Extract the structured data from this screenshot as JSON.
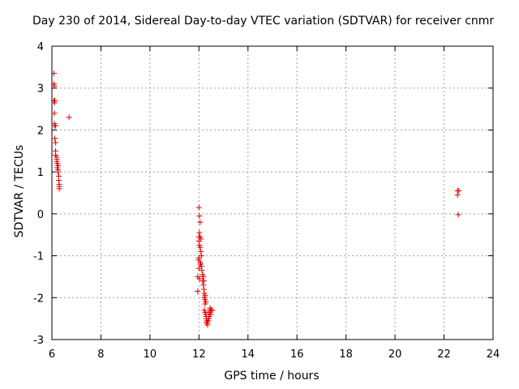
{
  "chart_data": {
    "type": "scatter",
    "title": "Day 230 of 2014, Sidereal Day-to-day VTEC variation (SDTVAR) for receiver cnmr",
    "xlabel": "GPS time / hours",
    "ylabel": "SDTVAR / TECUs",
    "xlim": [
      6,
      24
    ],
    "ylim": [
      -3,
      4
    ],
    "xticks": [
      "6",
      "8",
      "10",
      "12",
      "14",
      "16",
      "18",
      "20",
      "22",
      "24"
    ],
    "yticks": [
      "-3",
      "-2",
      "-1",
      "0",
      "1",
      "2",
      "3",
      "4"
    ],
    "grid": true,
    "marker": "+",
    "color": "#e00000",
    "series": [
      {
        "x": [
          6.08,
          6.08,
          6.1,
          6.08,
          6.1,
          6.12,
          6.1,
          6.1,
          6.15,
          6.1,
          6.12,
          6.15,
          6.15,
          6.15,
          6.2,
          6.2,
          6.2,
          6.22,
          6.22,
          6.25,
          6.25,
          6.25,
          6.28,
          6.28,
          6.3,
          6.3,
          6.3,
          6.7
        ],
        "y": [
          3.35,
          3.1,
          3.05,
          2.7,
          2.65,
          2.7,
          2.4,
          2.15,
          2.1,
          2.1,
          1.8,
          1.7,
          1.5,
          1.4,
          1.35,
          1.3,
          1.25,
          1.2,
          1.1,
          1.15,
          1.05,
          1.0,
          0.9,
          0.8,
          0.7,
          0.65,
          0.6,
          2.3
        ]
      },
      {
        "x": [
          12.0,
          12.02,
          12.05,
          12.02,
          12.0,
          12.05,
          12.08,
          12.0,
          12.02,
          12.05,
          12.08,
          12.1,
          12.0,
          11.98,
          12.05,
          12.08,
          12.1,
          12.0,
          12.05,
          12.12,
          11.95,
          12.02,
          12.15,
          12.18,
          12.15,
          12.2,
          12.18,
          12.2,
          12.22,
          12.25,
          12.22,
          12.25,
          12.28,
          12.25,
          11.95,
          12.22,
          12.25,
          12.28,
          12.3,
          12.3,
          12.32,
          12.3,
          12.35,
          12.35,
          12.38,
          12.4,
          12.42,
          12.38,
          12.45,
          12.48,
          12.5,
          12.45,
          12.55,
          12.48
        ],
        "y": [
          0.15,
          -0.05,
          -0.2,
          -0.45,
          -0.55,
          -0.55,
          -0.6,
          -0.65,
          -0.75,
          -0.8,
          -0.9,
          -1.0,
          -1.05,
          -1.1,
          -1.15,
          -1.2,
          -1.25,
          -1.3,
          -1.2,
          -1.35,
          -1.5,
          -1.55,
          -1.45,
          -1.5,
          -1.6,
          -1.6,
          -1.7,
          -1.8,
          -1.9,
          -1.95,
          -2.0,
          -2.05,
          -2.1,
          -2.15,
          -1.85,
          -2.3,
          -2.35,
          -2.4,
          -2.45,
          -2.5,
          -2.55,
          -2.6,
          -2.6,
          -2.65,
          -2.55,
          -2.5,
          -2.45,
          -2.35,
          -2.35,
          -2.3,
          -2.3,
          -2.25,
          -2.3,
          -2.4
        ]
      },
      {
        "x": [
          22.55,
          22.6,
          22.55,
          22.58
        ],
        "y": [
          0.55,
          0.55,
          0.45,
          -0.02
        ]
      }
    ]
  }
}
